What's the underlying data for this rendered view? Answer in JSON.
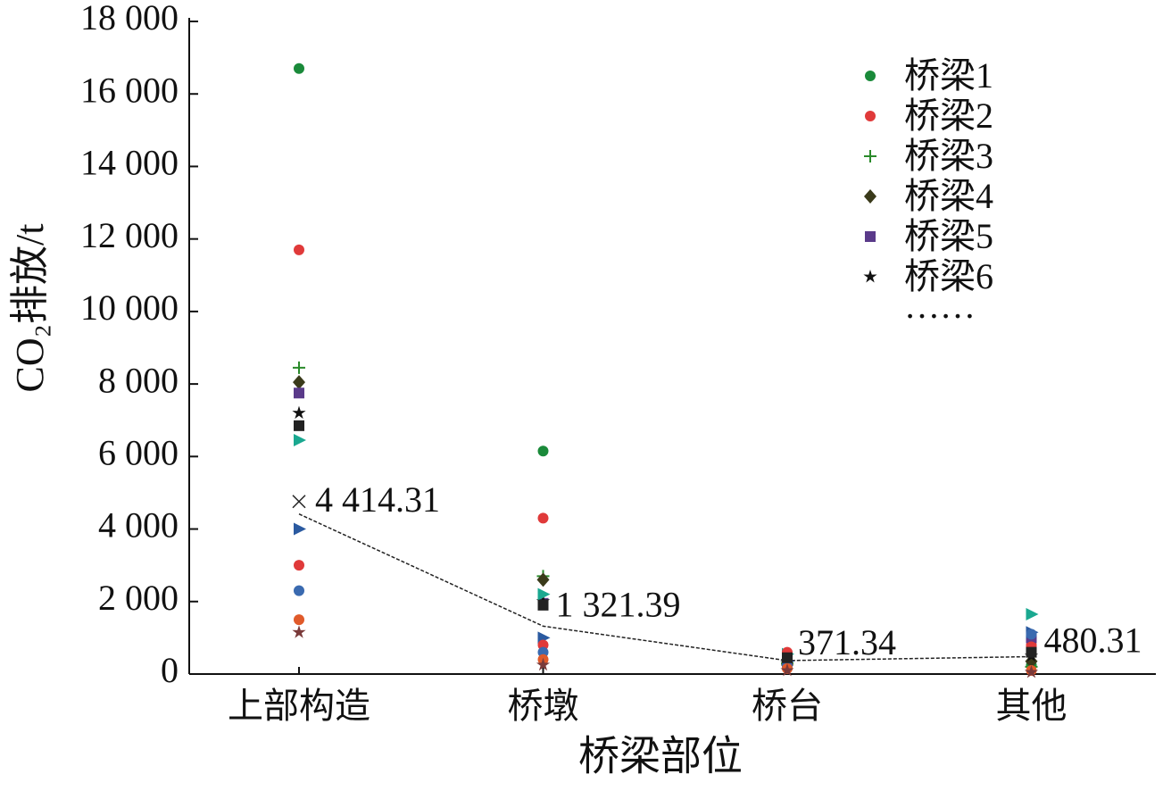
{
  "chart_data": {
    "type": "scatter",
    "x_label": "桥梁部位",
    "y_label": "CO₂排放/t",
    "categories": [
      "上部构造",
      "桥墩",
      "桥台",
      "其他"
    ],
    "ylim": [
      0,
      18000
    ],
    "yticks": [
      0,
      {
        "value": 2000,
        "label": "2 000"
      },
      {
        "value": 4000,
        "label": "4 000"
      },
      {
        "value": 6000,
        "label": "6 000"
      },
      {
        "value": 8000,
        "label": "8 000"
      },
      {
        "value": 10000,
        "label": "10 000"
      },
      {
        "value": 12000,
        "label": "12 000"
      },
      {
        "value": 14000,
        "label": "14 000"
      },
      {
        "value": 16000,
        "label": "16 000"
      },
      {
        "value": 18000,
        "label": "18 000"
      }
    ],
    "series": [
      {
        "name": "桥梁1",
        "color": "#1a8a3a",
        "marker": "circle",
        "values": [
          16700,
          6150,
          400,
          250
        ]
      },
      {
        "name": "桥梁2",
        "color": "#e03a3a",
        "marker": "circle",
        "values": [
          11700,
          4300,
          500,
          800
        ]
      },
      {
        "name": "桥梁3",
        "color": "#2a8a2a",
        "marker": "plus",
        "values": [
          8450,
          2700,
          300,
          200
        ]
      },
      {
        "name": "桥梁4",
        "color": "#3a3a1a",
        "marker": "diamond",
        "values": [
          8050,
          2600,
          250,
          350
        ]
      },
      {
        "name": "桥梁5",
        "color": "#5a3a8a",
        "marker": "square",
        "values": [
          7750,
          1950,
          400,
          1000
        ]
      },
      {
        "name": "桥梁6",
        "color": "#111111",
        "marker": "star",
        "values": [
          7200,
          2000,
          300,
          500
        ]
      },
      {
        "color": "#1aa890",
        "marker": "triangle",
        "values": [
          6450,
          2200,
          550,
          1650
        ]
      },
      {
        "color": "#2a5aa0",
        "marker": "triangle",
        "values": [
          4000,
          1000,
          350,
          1150
        ]
      },
      {
        "color": "#e03a3a",
        "marker": "circle",
        "values": [
          3000,
          800,
          600,
          750
        ]
      },
      {
        "color": "#3a6ab0",
        "marker": "circle",
        "values": [
          2300,
          600,
          200,
          1100
        ]
      },
      {
        "color": "#e05a2a",
        "marker": "circle",
        "values": [
          1500,
          400,
          150,
          100
        ]
      },
      {
        "color": "#7a3a3a",
        "marker": "star",
        "values": [
          1150,
          250,
          100,
          50
        ]
      },
      {
        "color": "#222222",
        "marker": "square",
        "values": [
          6850,
          1900,
          450,
          600
        ]
      }
    ],
    "legend_more": "……",
    "mean_line": {
      "values": [
        4414.31,
        1321.39,
        371.34,
        480.31
      ],
      "value_labels": [
        "4 414.31",
        "1 321.39",
        "371.34",
        "480.31"
      ]
    }
  }
}
